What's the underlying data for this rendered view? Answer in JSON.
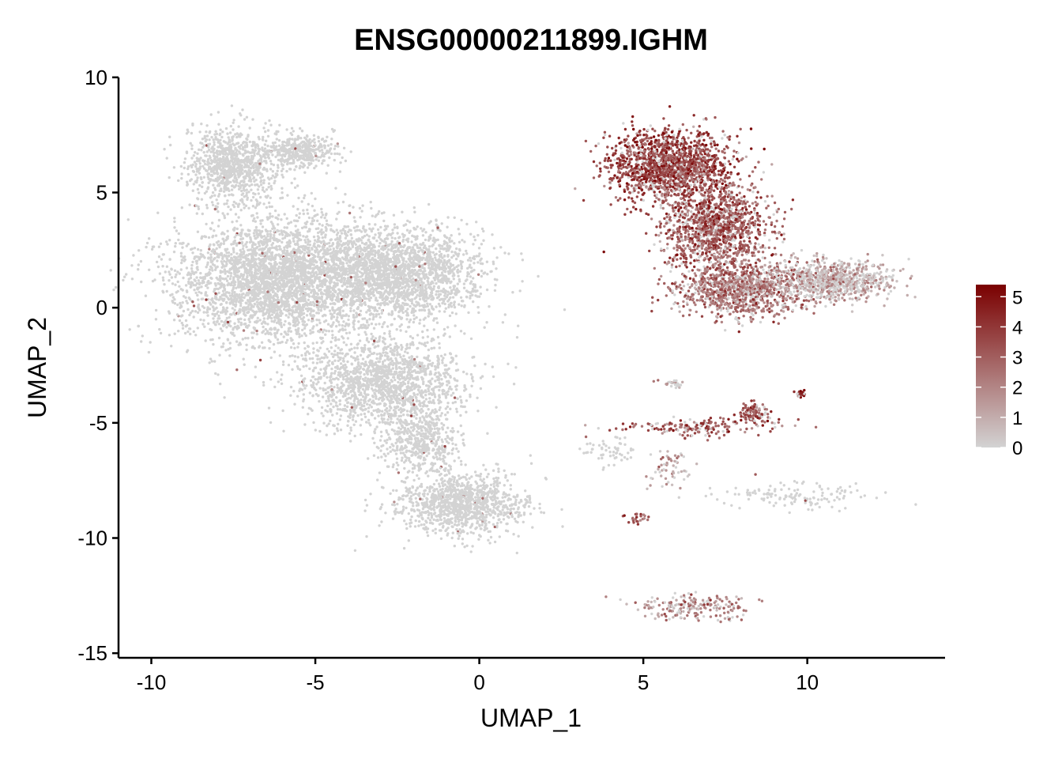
{
  "chart_data": {
    "type": "scatter",
    "title": "ENSG00000211899.IGHM",
    "xlabel": "UMAP_1",
    "ylabel": "UMAP_2",
    "xlim": [
      -11,
      14.2
    ],
    "ylim": [
      -15.2,
      10.2
    ],
    "x_ticks": [
      -10,
      -5,
      0,
      5,
      10
    ],
    "x_tick_labels": [
      "-10",
      "-5",
      "0",
      "5",
      "10"
    ],
    "y_ticks": [
      10,
      5,
      0,
      -5,
      -10,
      -15
    ],
    "y_tick_labels": [
      "10",
      "5",
      "0",
      "-5",
      "-10",
      "-15"
    ],
    "grid": false,
    "color_scale": {
      "low": "#d3d3d3",
      "high": "#7a0000",
      "min": 0,
      "max": 5.4,
      "breaks": [
        0,
        1,
        2,
        3,
        4,
        5
      ],
      "labels": [
        "0",
        "1",
        "2",
        "3",
        "4",
        "5"
      ],
      "legend_position": "right"
    },
    "clusters": [
      {
        "name": "",
        "x": -7.5,
        "y": 6.2,
        "sx": 0.9,
        "sy": 1.1,
        "n": 900,
        "expr": 0
      },
      {
        "name": "",
        "x": -5.5,
        "y": 6.8,
        "sx": 0.8,
        "sy": 0.5,
        "n": 400,
        "expr": 0
      },
      {
        "name": "",
        "x": -6.2,
        "y": 1.2,
        "sx": 2.1,
        "sy": 1.8,
        "n": 3400,
        "expr": 0
      },
      {
        "name": "",
        "x": -2.5,
        "y": 1.5,
        "sx": 1.8,
        "sy": 1.3,
        "n": 2200,
        "expr": 0
      },
      {
        "name": "",
        "x": -3.0,
        "y": -3.2,
        "sx": 1.6,
        "sy": 1.3,
        "n": 1600,
        "expr": 0
      },
      {
        "name": "",
        "x": -1.8,
        "y": -5.8,
        "sx": 0.8,
        "sy": 1.0,
        "n": 500,
        "expr": 0
      },
      {
        "name": "",
        "x": -0.5,
        "y": -8.5,
        "sx": 1.3,
        "sy": 0.9,
        "n": 1100,
        "expr": 0
      },
      {
        "name": "",
        "x": 5.8,
        "y": 6.2,
        "sx": 1.2,
        "sy": 1.0,
        "n": 1600,
        "expr": 3.6
      },
      {
        "name": "",
        "x": 7.2,
        "y": 3.5,
        "sx": 1.1,
        "sy": 1.3,
        "n": 1300,
        "expr": 3.0
      },
      {
        "name": "",
        "x": 8.0,
        "y": 0.8,
        "sx": 1.3,
        "sy": 0.8,
        "n": 1100,
        "expr": 2.4
      },
      {
        "name": "",
        "x": 10.8,
        "y": 1.2,
        "sx": 1.1,
        "sy": 0.6,
        "n": 800,
        "expr": 0.8
      },
      {
        "name": "",
        "x": 6.8,
        "y": -5.2,
        "sx": 1.4,
        "sy": 0.25,
        "n": 160,
        "expr": 3.0
      },
      {
        "name": "",
        "x": 8.4,
        "y": -4.6,
        "sx": 0.3,
        "sy": 0.3,
        "n": 100,
        "expr": 3.5
      },
      {
        "name": "",
        "x": 9.8,
        "y": -3.7,
        "sx": 0.12,
        "sy": 0.12,
        "n": 25,
        "expr": 3.8
      },
      {
        "name": "",
        "x": 9.5,
        "y": -8.2,
        "sx": 1.6,
        "sy": 0.4,
        "n": 130,
        "expr": 0
      },
      {
        "name": "",
        "x": 4.0,
        "y": -6.2,
        "sx": 0.6,
        "sy": 0.5,
        "n": 60,
        "expr": 0
      },
      {
        "name": "",
        "x": 5.8,
        "y": -7.0,
        "sx": 0.5,
        "sy": 0.6,
        "n": 60,
        "expr": 1.2
      },
      {
        "name": "",
        "x": 5.9,
        "y": -3.3,
        "sx": 0.2,
        "sy": 0.12,
        "n": 25,
        "expr": 0.6
      },
      {
        "name": "",
        "x": 4.8,
        "y": -9.1,
        "sx": 0.3,
        "sy": 0.2,
        "n": 25,
        "expr": 3.2
      },
      {
        "name": "",
        "x": 6.6,
        "y": -13.0,
        "sx": 1.1,
        "sy": 0.35,
        "n": 200,
        "expr": 1.8
      }
    ]
  }
}
